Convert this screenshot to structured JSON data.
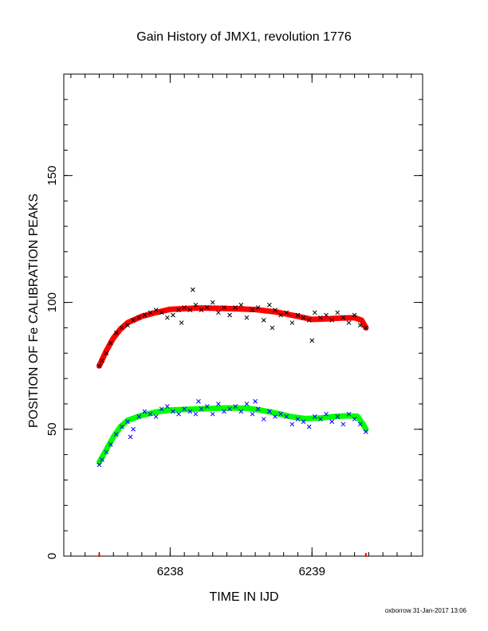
{
  "colors": {
    "background": "#ffffff",
    "axis": "#000000",
    "red_fit": "#ff0000",
    "green_fit": "#00ff00",
    "upper_points": "#000000",
    "lower_points": "#0000ff",
    "marker": "#ff0000"
  },
  "chart_data": {
    "type": "scatter",
    "title": "Gain History of JMX1, revolution 1776",
    "xlabel": "TIME IN IJD",
    "ylabel": "POSITION OF Fe CALIBRATION PEAKS",
    "xlim": [
      6237.25,
      6239.78
    ],
    "ylim": [
      0,
      190
    ],
    "xticks": [
      6238,
      6239
    ],
    "yticks": [
      0,
      50,
      100,
      150
    ],
    "x_minor_step": 0.1,
    "y_minor_step": 10,
    "grid": false,
    "range_markers_x": [
      6237.5,
      6239.38
    ],
    "series": [
      {
        "marker": "x",
        "color": "#000000",
        "points": [
          [
            6237.5,
            75
          ],
          [
            6237.52,
            77
          ],
          [
            6237.55,
            80
          ],
          [
            6237.58,
            84
          ],
          [
            6237.62,
            88
          ],
          [
            6237.66,
            90
          ],
          [
            6237.7,
            91
          ],
          [
            6237.74,
            93
          ],
          [
            6237.78,
            94
          ],
          [
            6237.82,
            95
          ],
          [
            6237.86,
            96
          ],
          [
            6237.9,
            97
          ],
          [
            6237.94,
            96
          ],
          [
            6237.98,
            94
          ],
          [
            6238.02,
            95
          ],
          [
            6238.06,
            97
          ],
          [
            6238.1,
            98
          ],
          [
            6238.14,
            97
          ],
          [
            6238.18,
            99
          ],
          [
            6238.22,
            97
          ],
          [
            6238.26,
            98
          ],
          [
            6238.3,
            100
          ],
          [
            6238.34,
            96
          ],
          [
            6238.38,
            98
          ],
          [
            6238.42,
            95
          ],
          [
            6238.46,
            98
          ],
          [
            6238.5,
            99
          ],
          [
            6238.54,
            94
          ],
          [
            6238.58,
            97
          ],
          [
            6238.62,
            98
          ],
          [
            6238.66,
            93
          ],
          [
            6238.7,
            99
          ],
          [
            6238.74,
            97
          ],
          [
            6238.78,
            95
          ],
          [
            6238.82,
            96
          ],
          [
            6238.86,
            92
          ],
          [
            6238.9,
            95
          ],
          [
            6238.94,
            94
          ],
          [
            6238.98,
            93
          ],
          [
            6239.02,
            96
          ],
          [
            6239.06,
            94
          ],
          [
            6239.1,
            95
          ],
          [
            6239.14,
            93
          ],
          [
            6239.18,
            96
          ],
          [
            6239.22,
            94
          ],
          [
            6239.26,
            92
          ],
          [
            6239.3,
            95
          ],
          [
            6239.34,
            91
          ],
          [
            6239.38,
            90
          ],
          [
            6238.16,
            105
          ],
          [
            6238.08,
            92
          ],
          [
            6238.72,
            90
          ],
          [
            6239.0,
            85
          ]
        ]
      },
      {
        "marker": "x",
        "color": "#0000ff",
        "points": [
          [
            6237.5,
            36
          ],
          [
            6237.52,
            38
          ],
          [
            6237.55,
            41
          ],
          [
            6237.58,
            44
          ],
          [
            6237.62,
            48
          ],
          [
            6237.66,
            51
          ],
          [
            6237.7,
            53
          ],
          [
            6237.74,
            50
          ],
          [
            6237.78,
            55
          ],
          [
            6237.82,
            57
          ],
          [
            6237.86,
            56
          ],
          [
            6237.9,
            55
          ],
          [
            6237.94,
            58
          ],
          [
            6237.98,
            59
          ],
          [
            6238.02,
            57
          ],
          [
            6238.06,
            56
          ],
          [
            6238.1,
            58
          ],
          [
            6238.14,
            57
          ],
          [
            6238.18,
            56
          ],
          [
            6238.22,
            58
          ],
          [
            6238.26,
            59
          ],
          [
            6238.3,
            56
          ],
          [
            6238.34,
            60
          ],
          [
            6238.38,
            57
          ],
          [
            6238.42,
            58
          ],
          [
            6238.46,
            59
          ],
          [
            6238.5,
            57
          ],
          [
            6238.54,
            60
          ],
          [
            6238.58,
            56
          ],
          [
            6238.62,
            58
          ],
          [
            6238.66,
            54
          ],
          [
            6238.7,
            57
          ],
          [
            6238.74,
            55
          ],
          [
            6238.78,
            56
          ],
          [
            6238.82,
            55
          ],
          [
            6238.86,
            52
          ],
          [
            6238.9,
            54
          ],
          [
            6238.94,
            53
          ],
          [
            6238.98,
            51
          ],
          [
            6239.02,
            55
          ],
          [
            6239.06,
            54
          ],
          [
            6239.1,
            56
          ],
          [
            6239.14,
            53
          ],
          [
            6239.18,
            55
          ],
          [
            6239.22,
            52
          ],
          [
            6239.26,
            56
          ],
          [
            6239.3,
            54
          ],
          [
            6239.34,
            52
          ],
          [
            6239.38,
            49
          ],
          [
            6237.72,
            47
          ],
          [
            6238.2,
            61
          ],
          [
            6238.6,
            61
          ]
        ]
      },
      {
        "marker": "line",
        "color": "#ff0000",
        "points": [
          [
            6237.5,
            75
          ],
          [
            6237.55,
            81
          ],
          [
            6237.6,
            86
          ],
          [
            6237.65,
            89.5
          ],
          [
            6237.7,
            92
          ],
          [
            6237.8,
            94.5
          ],
          [
            6237.9,
            96
          ],
          [
            6238.0,
            97.3
          ],
          [
            6238.2,
            97.8
          ],
          [
            6238.4,
            97.6
          ],
          [
            6238.6,
            97.2
          ],
          [
            6238.75,
            96.2
          ],
          [
            6238.9,
            94.5
          ],
          [
            6239.0,
            93.3
          ],
          [
            6239.1,
            93.5
          ],
          [
            6239.2,
            93.8
          ],
          [
            6239.3,
            94
          ],
          [
            6239.35,
            93
          ],
          [
            6239.38,
            90
          ]
        ]
      },
      {
        "marker": "line",
        "color": "#00ff00",
        "points": [
          [
            6237.5,
            37
          ],
          [
            6237.55,
            42
          ],
          [
            6237.6,
            47
          ],
          [
            6237.65,
            51
          ],
          [
            6237.7,
            53.5
          ],
          [
            6237.8,
            55.5
          ],
          [
            6237.9,
            56.8
          ],
          [
            6238.0,
            57.6
          ],
          [
            6238.2,
            58
          ],
          [
            6238.4,
            58.4
          ],
          [
            6238.55,
            58.3
          ],
          [
            6238.65,
            57.4
          ],
          [
            6238.75,
            56.3
          ],
          [
            6238.85,
            55
          ],
          [
            6238.95,
            54.2
          ],
          [
            6239.05,
            54.4
          ],
          [
            6239.15,
            55
          ],
          [
            6239.25,
            55.3
          ],
          [
            6239.32,
            55.1
          ],
          [
            6239.36,
            52
          ],
          [
            6239.38,
            50
          ]
        ]
      }
    ]
  },
  "footer": {
    "credit": "oxborrow 31-Jan-2017 13:06"
  }
}
